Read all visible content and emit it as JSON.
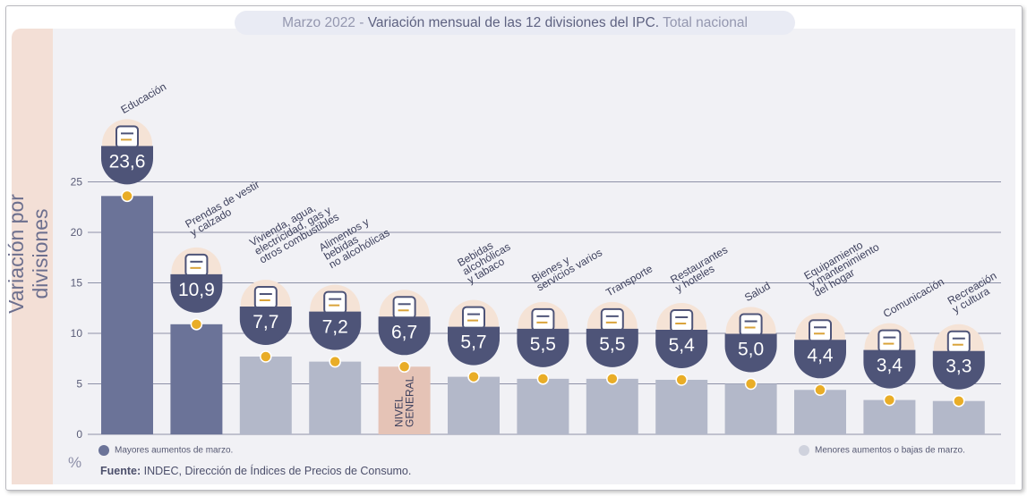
{
  "chart_data": {
    "type": "bar",
    "title_prefix": "Marzo 2022 - ",
    "title_main": "Variación mensual de las 12 divisiones del IPC.",
    "title_suffix": " Total nacional",
    "ylabel": "Variación por divisiones",
    "unit": "%",
    "ylim": [
      0,
      25
    ],
    "yticks": [
      0,
      5,
      10,
      15,
      20,
      25
    ],
    "categories": [
      [
        "Educación"
      ],
      [
        "Prendas de vestir",
        "y calzado"
      ],
      [
        "Vivienda, agua,",
        "electricidad, gas y",
        "otros combustibles"
      ],
      [
        "Alimentos y",
        "bebidas",
        "no alcohólicas"
      ],
      [
        "NIVEL",
        "GENERAL"
      ],
      [
        "Bebidas",
        "alcohólicas",
        "y tabaco"
      ],
      [
        "Bienes y",
        "servicios varios"
      ],
      [
        "Transporte"
      ],
      [
        "Restaurantes",
        "y hoteles"
      ],
      [
        "Salud"
      ],
      [
        "Equipamiento",
        "y mantenimiento",
        "del hogar"
      ],
      [
        "Comunicación"
      ],
      [
        "Recreación",
        "y cultura"
      ]
    ],
    "values": [
      23.6,
      10.9,
      7.7,
      7.2,
      6.7,
      5.7,
      5.5,
      5.5,
      5.4,
      5.0,
      4.4,
      3.4,
      3.3
    ],
    "value_labels": [
      "23,6",
      "10,9",
      "7,7",
      "7,2",
      "6,7",
      "5,7",
      "5,5",
      "5,5",
      "5,4",
      "5,0",
      "4,4",
      "3,4",
      "3,3"
    ],
    "groups": [
      "high",
      "high",
      "low",
      "low",
      "general",
      "low",
      "low",
      "low",
      "low",
      "low",
      "low",
      "low",
      "low"
    ],
    "icons": [
      "notebook-icon",
      "shirt-icon",
      "lightbulb-icon",
      "groceries-icon",
      "shopping-bag-icon",
      "bottle-icon",
      "comb-scissors-icon",
      "sube-card-icon",
      "cutlery-icon",
      "first-aid-icon",
      "washing-machine-icon",
      "smartphone-icon",
      "sun-hat-icon"
    ],
    "colors": {
      "high": "#6b7398",
      "low": "#b3b8c9",
      "general": "#e5c3b6",
      "badge": "#4e5478",
      "badge_light": "#f5e3d6",
      "dot": "#e9ad27",
      "general_value": "#f0b540",
      "grid": "#8e91a7"
    },
    "legend": {
      "high": "Mayores aumentos de marzo.",
      "low": "Menores aumentos o bajas de marzo."
    }
  },
  "footer": {
    "label": "Fuente:",
    "text": " INDEC, Dirección de Índices de Precios de Consumo."
  }
}
